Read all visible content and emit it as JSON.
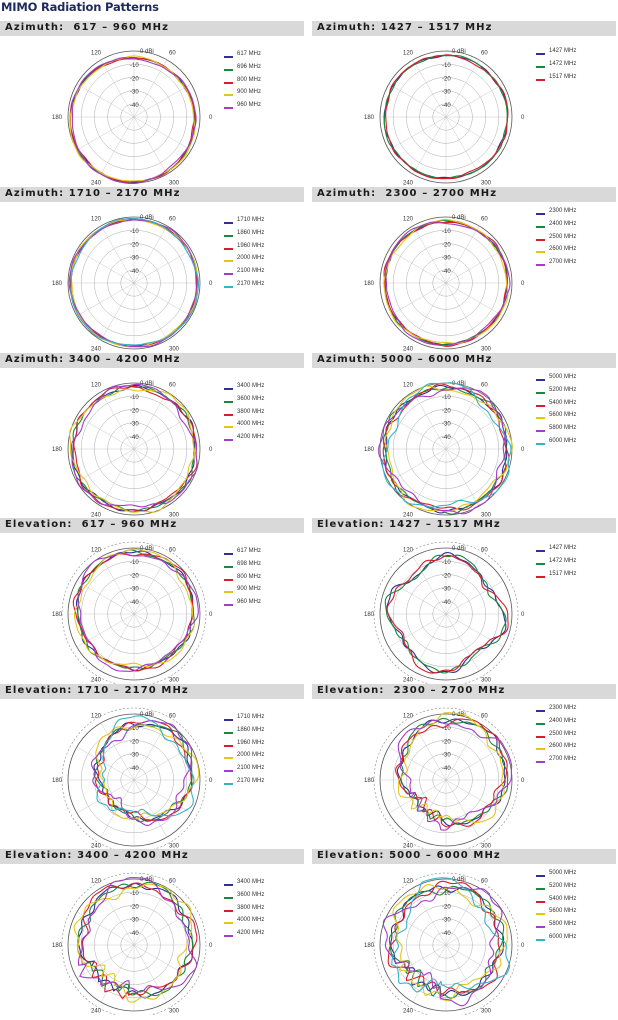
{
  "page_title": "MIMO Radiation Patterns",
  "axis": {
    "unit_label": "0 dBi",
    "ring_labels": [
      "-10",
      "-20",
      "-30",
      "-40"
    ],
    "angle_labels": [
      "120",
      "60",
      "180",
      "0",
      "240",
      "300"
    ]
  },
  "chart_data": [
    {
      "type": "polar",
      "title": "Azimuth:  617 – 960 MHz",
      "rlim": [
        -50,
        0
      ],
      "grid": true,
      "legend": "right",
      "series": [
        {
          "name": "617 MHz",
          "color": "#2e3192"
        },
        {
          "name": "696 MHz",
          "color": "#1a8a3a"
        },
        {
          "name": "800 MHz",
          "color": "#d61f2c"
        },
        {
          "name": "900 MHz",
          "color": "#e6c41a"
        },
        {
          "name": "960 MHz",
          "color": "#a43bc9"
        }
      ]
    },
    {
      "type": "polar",
      "title": "Azimuth: 1427 – 1517 MHz",
      "rlim": [
        -50,
        0
      ],
      "grid": true,
      "legend": "right",
      "series": [
        {
          "name": "1427 MHz",
          "color": "#2e3192"
        },
        {
          "name": "1472 MHz",
          "color": "#1a8a3a"
        },
        {
          "name": "1517 MHz",
          "color": "#d61f2c"
        }
      ]
    },
    {
      "type": "polar",
      "title": "Azimuth: 1710 – 2170 MHz",
      "rlim": [
        -50,
        0
      ],
      "grid": true,
      "legend": "right",
      "series": [
        {
          "name": "1710 MHz",
          "color": "#2e3192"
        },
        {
          "name": "1860 MHz",
          "color": "#1a8a3a"
        },
        {
          "name": "1960 MHz",
          "color": "#d61f2c"
        },
        {
          "name": "2000 MHz",
          "color": "#e6c41a"
        },
        {
          "name": "2100 MHz",
          "color": "#a43bc9"
        },
        {
          "name": "2170 MHz",
          "color": "#35b3c9"
        }
      ]
    },
    {
      "type": "polar",
      "title": "Azimuth:  2300 – 2700 MHz",
      "rlim": [
        -50,
        0
      ],
      "grid": true,
      "legend": "right",
      "series": [
        {
          "name": "2300 MHz",
          "color": "#2e3192"
        },
        {
          "name": "2400 MHz",
          "color": "#1a8a3a"
        },
        {
          "name": "2500 MHz",
          "color": "#d61f2c"
        },
        {
          "name": "2600 MHz",
          "color": "#e6c41a"
        },
        {
          "name": "2700 MHz",
          "color": "#a43bc9"
        }
      ]
    },
    {
      "type": "polar",
      "title": "Azimuth: 3400 – 4200 MHz",
      "rlim": [
        -50,
        0
      ],
      "grid": true,
      "legend": "right",
      "series": [
        {
          "name": "3400 MHz",
          "color": "#2e3192"
        },
        {
          "name": "3600 MHz",
          "color": "#1a8a3a"
        },
        {
          "name": "3800 MHz",
          "color": "#d61f2c"
        },
        {
          "name": "4000 MHz",
          "color": "#e6c41a"
        },
        {
          "name": "4200 MHz",
          "color": "#a43bc9"
        }
      ]
    },
    {
      "type": "polar",
      "title": "Azimuth: 5000 – 6000 MHz",
      "rlim": [
        -50,
        0
      ],
      "grid": true,
      "legend": "right",
      "series": [
        {
          "name": "5000 MHz",
          "color": "#2e3192"
        },
        {
          "name": "5200 MHz",
          "color": "#1a8a3a"
        },
        {
          "name": "5400 MHz",
          "color": "#d61f2c"
        },
        {
          "name": "5600 MHz",
          "color": "#e6c41a"
        },
        {
          "name": "5800 MHz",
          "color": "#a43bc9"
        },
        {
          "name": "6000 MHz",
          "color": "#35b3c9"
        }
      ]
    },
    {
      "type": "polar",
      "title": "Elevation:  617 – 960 MHz",
      "rlim": [
        -50,
        0
      ],
      "grid": true,
      "legend": "right",
      "series": [
        {
          "name": "617 MHz",
          "color": "#2e3192"
        },
        {
          "name": "698 MHz",
          "color": "#1a8a3a"
        },
        {
          "name": "800 MHz",
          "color": "#d61f2c"
        },
        {
          "name": "900 MHz",
          "color": "#e6c41a"
        },
        {
          "name": "960 MHz",
          "color": "#a43bc9"
        }
      ]
    },
    {
      "type": "polar",
      "title": "Elevation: 1427 – 1517 MHz",
      "rlim": [
        -50,
        0
      ],
      "grid": true,
      "legend": "right",
      "series": [
        {
          "name": "1427 MHz",
          "color": "#2e3192"
        },
        {
          "name": "1472 MHz",
          "color": "#1a8a3a"
        },
        {
          "name": "1517 MHz",
          "color": "#d61f2c"
        }
      ]
    },
    {
      "type": "polar",
      "title": "Elevation: 1710 – 2170 MHz",
      "rlim": [
        -50,
        0
      ],
      "grid": true,
      "legend": "right",
      "series": [
        {
          "name": "1710 MHz",
          "color": "#2e3192"
        },
        {
          "name": "1860 MHz",
          "color": "#1a8a3a"
        },
        {
          "name": "1960 MHz",
          "color": "#d61f2c"
        },
        {
          "name": "2000 MHz",
          "color": "#e6c41a"
        },
        {
          "name": "2100 MHz",
          "color": "#a43bc9"
        },
        {
          "name": "2170 MHz",
          "color": "#35b3c9"
        }
      ]
    },
    {
      "type": "polar",
      "title": "Elevation:  2300 – 2700 MHz",
      "rlim": [
        -50,
        0
      ],
      "grid": true,
      "legend": "right",
      "series": [
        {
          "name": "2300 MHz",
          "color": "#2e3192"
        },
        {
          "name": "2400 MHz",
          "color": "#1a8a3a"
        },
        {
          "name": "2500 MHz",
          "color": "#d61f2c"
        },
        {
          "name": "2600 MHz",
          "color": "#e6c41a"
        },
        {
          "name": "2700 MHz",
          "color": "#a43bc9"
        }
      ]
    },
    {
      "type": "polar",
      "title": "Elevation: 3400 – 4200 MHz",
      "rlim": [
        -50,
        0
      ],
      "grid": true,
      "legend": "right",
      "series": [
        {
          "name": "3400 MHz",
          "color": "#2e3192"
        },
        {
          "name": "3600 MHz",
          "color": "#1a8a3a"
        },
        {
          "name": "3800 MHz",
          "color": "#d61f2c"
        },
        {
          "name": "4000 MHz",
          "color": "#e6c41a"
        },
        {
          "name": "4200 MHz",
          "color": "#a43bc9"
        }
      ]
    },
    {
      "type": "polar",
      "title": "Elevation: 5000 – 6000 MHz",
      "rlim": [
        -50,
        0
      ],
      "grid": true,
      "legend": "right",
      "series": [
        {
          "name": "5000 MHz",
          "color": "#2e3192"
        },
        {
          "name": "5200 MHz",
          "color": "#1a8a3a"
        },
        {
          "name": "5400 MHz",
          "color": "#d61f2c"
        },
        {
          "name": "5600 MHz",
          "color": "#e6c41a"
        },
        {
          "name": "5800 MHz",
          "color": "#a43bc9"
        },
        {
          "name": "6000 MHz",
          "color": "#35b3c9"
        }
      ]
    }
  ]
}
